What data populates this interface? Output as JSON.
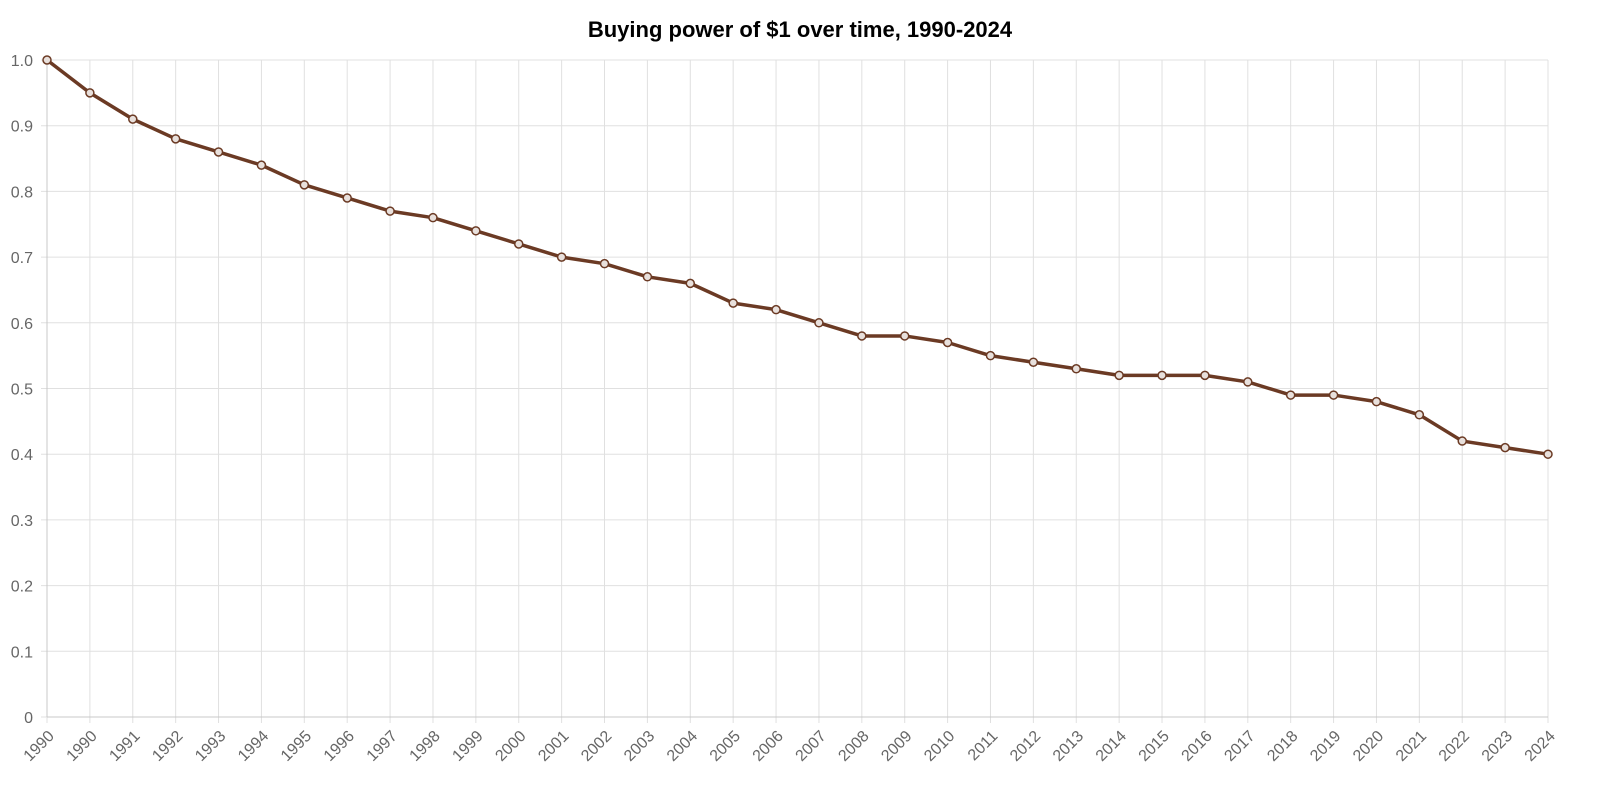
{
  "chart_data": {
    "type": "line",
    "title": "Buying power of $1 over time, 1990-2024",
    "xlabel": "",
    "ylabel": "",
    "categories": [
      "1990",
      "1990",
      "1991",
      "1992",
      "1993",
      "1994",
      "1995",
      "1996",
      "1997",
      "1998",
      "1999",
      "2000",
      "2001",
      "2002",
      "2003",
      "2004",
      "2005",
      "2006",
      "2007",
      "2008",
      "2009",
      "2010",
      "2011",
      "2012",
      "2013",
      "2014",
      "2015",
      "2016",
      "2017",
      "2018",
      "2019",
      "2020",
      "2021",
      "2022",
      "2023",
      "2024"
    ],
    "series": [
      {
        "values": [
          1.0,
          0.95,
          0.91,
          0.88,
          0.86,
          0.84,
          0.81,
          0.79,
          0.77,
          0.76,
          0.74,
          0.72,
          0.7,
          0.69,
          0.67,
          0.66,
          0.63,
          0.62,
          0.6,
          0.58,
          0.58,
          0.57,
          0.55,
          0.54,
          0.53,
          0.52,
          0.52,
          0.52,
          0.51,
          0.49,
          0.49,
          0.48,
          0.46,
          0.42,
          0.41,
          0.4
        ]
      }
    ],
    "ylim": [
      0,
      1.0
    ],
    "yticks": [
      "0",
      "0.1",
      "0.2",
      "0.3",
      "0.4",
      "0.5",
      "0.6",
      "0.7",
      "0.8",
      "0.9",
      "1.0"
    ],
    "grid": true,
    "legend": "none",
    "line_color": "#6b3a24",
    "marker_fill": "#e8e0dc"
  }
}
